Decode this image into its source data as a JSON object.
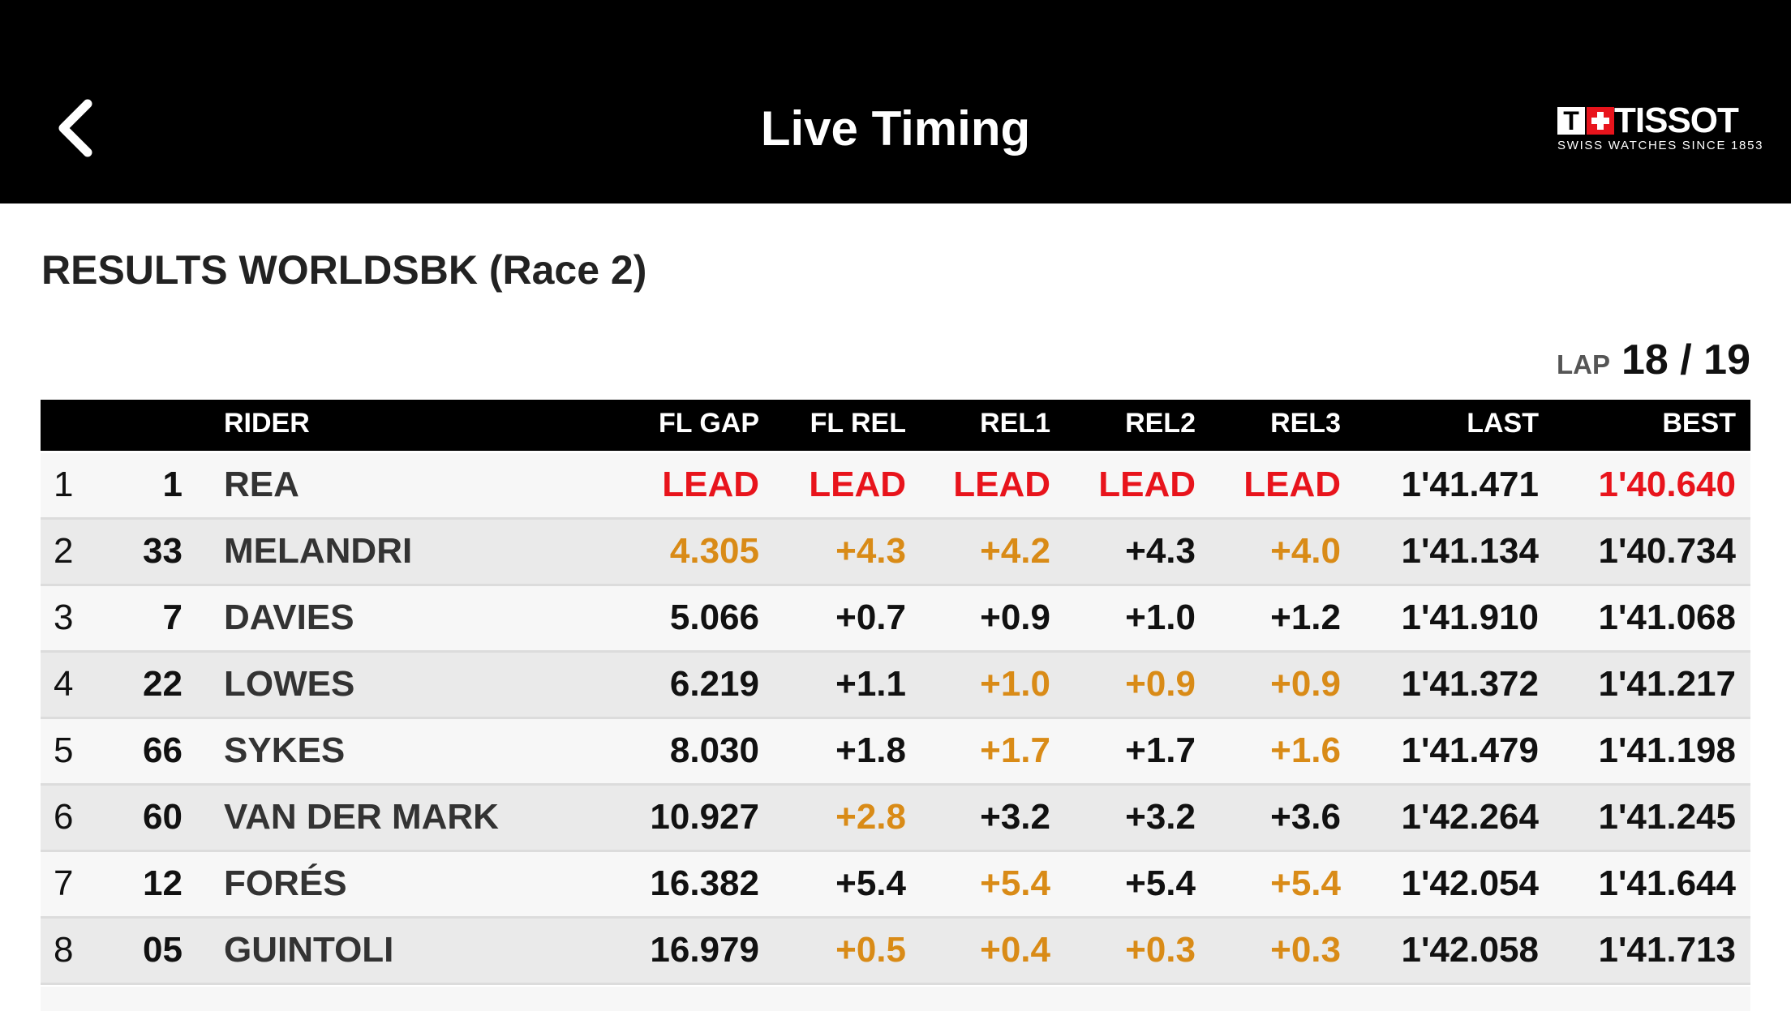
{
  "header": {
    "title": "Live Timing",
    "logo_mark": "T",
    "logo": "TISSOT",
    "tagline": "SWISS WATCHES SINCE 1853"
  },
  "results": {
    "title": "RESULTS  WORLDSBK  (Race 2)",
    "lap_label": "LAP",
    "lap": "18 / 19"
  },
  "table": {
    "columns": [
      "RIDER",
      "FL GAP",
      "FL REL",
      "REL1",
      "REL2",
      "REL3",
      "LAST",
      "BEST"
    ],
    "rows": [
      {
        "pos": "1",
        "num": "1",
        "rider": "REA",
        "cells": [
          "LEAD",
          "LEAD",
          "LEAD",
          "LEAD",
          "LEAD",
          "1'41.471",
          "1'40.640"
        ],
        "colors": [
          "red",
          "red",
          "red",
          "red",
          "red",
          "black",
          "red"
        ]
      },
      {
        "pos": "2",
        "num": "33",
        "rider": "MELANDRI",
        "cells": [
          "4.305",
          "+4.3",
          "+4.2",
          "+4.3",
          "+4.0",
          "1'41.134",
          "1'40.734"
        ],
        "colors": [
          "orange",
          "orange",
          "orange",
          "black",
          "orange",
          "black",
          "black"
        ]
      },
      {
        "pos": "3",
        "num": "7",
        "rider": "DAVIES",
        "cells": [
          "5.066",
          "+0.7",
          "+0.9",
          "+1.0",
          "+1.2",
          "1'41.910",
          "1'41.068"
        ],
        "colors": [
          "black",
          "black",
          "black",
          "black",
          "black",
          "black",
          "black"
        ]
      },
      {
        "pos": "4",
        "num": "22",
        "rider": "LOWES",
        "cells": [
          "6.219",
          "+1.1",
          "+1.0",
          "+0.9",
          "+0.9",
          "1'41.372",
          "1'41.217"
        ],
        "colors": [
          "black",
          "black",
          "orange",
          "orange",
          "orange",
          "black",
          "black"
        ]
      },
      {
        "pos": "5",
        "num": "66",
        "rider": "SYKES",
        "cells": [
          "8.030",
          "+1.8",
          "+1.7",
          "+1.7",
          "+1.6",
          "1'41.479",
          "1'41.198"
        ],
        "colors": [
          "black",
          "black",
          "orange",
          "black",
          "orange",
          "black",
          "black"
        ]
      },
      {
        "pos": "6",
        "num": "60",
        "rider": "VAN DER MARK",
        "cells": [
          "10.927",
          "+2.8",
          "+3.2",
          "+3.2",
          "+3.6",
          "1'42.264",
          "1'41.245"
        ],
        "colors": [
          "black",
          "orange",
          "black",
          "black",
          "black",
          "black",
          "black"
        ]
      },
      {
        "pos": "7",
        "num": "12",
        "rider": "FORÉS",
        "cells": [
          "16.382",
          "+5.4",
          "+5.4",
          "+5.4",
          "+5.4",
          "1'42.054",
          "1'41.644"
        ],
        "colors": [
          "black",
          "black",
          "orange",
          "black",
          "orange",
          "black",
          "black"
        ]
      },
      {
        "pos": "8",
        "num": "05",
        "rider": "GUINTOLI",
        "cells": [
          "16.979",
          "+0.5",
          "+0.4",
          "+0.3",
          "+0.3",
          "1'42.058",
          "1'41.713"
        ],
        "colors": [
          "black",
          "orange",
          "orange",
          "orange",
          "orange",
          "black",
          "black"
        ]
      }
    ]
  }
}
